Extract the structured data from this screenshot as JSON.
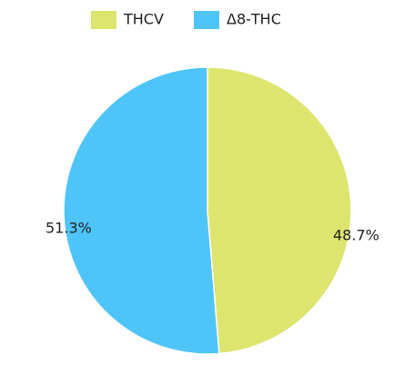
{
  "chart_data": {
    "type": "pie",
    "categories": [
      "THCV",
      "Δ8-THC"
    ],
    "values": [
      48.7,
      51.3
    ],
    "value_labels": [
      "48.7%",
      "51.3%"
    ],
    "colors": [
      "#dde56f",
      "#4fc4f8"
    ],
    "legend": "top"
  }
}
